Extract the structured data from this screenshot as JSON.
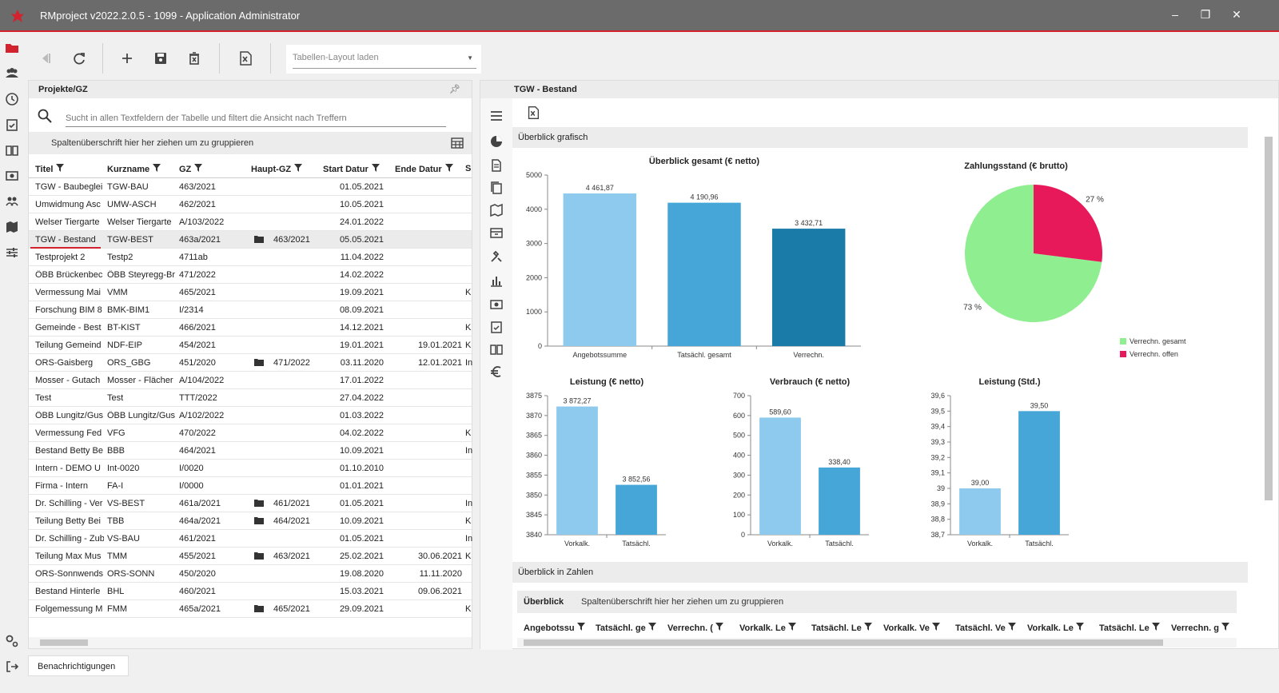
{
  "window": {
    "title": "RMproject v2022.2.0.5 - 1099 - Application Administrator",
    "minimize": "–",
    "restore": "❐",
    "close": "✕"
  },
  "toolbar": {
    "layout_select_placeholder": "Tabellen-Layout laden",
    "icons": [
      "back-icon",
      "refresh-icon",
      "add-icon",
      "save-icon",
      "delete-icon",
      "excel-export-icon"
    ]
  },
  "left_panel": {
    "title": "Projekte/GZ",
    "search_placeholder": "Sucht in allen Textfeldern der Tabelle und filtert die Ansicht nach Treffern",
    "group_hint": "Spaltenüberschrift hier her ziehen um zu gruppieren",
    "columns": [
      "Titel",
      "Kurzname",
      "GZ",
      "Haupt-GZ",
      "Start Datur",
      "Ende Datur",
      "S"
    ],
    "rows": [
      {
        "titel": "TGW - Baubeglei",
        "kurzname": "TGW-BAU",
        "gz": "463/2021",
        "haupt": "",
        "start": "01.05.2021",
        "ende": "",
        "s": "",
        "folder": false
      },
      {
        "titel": "Umwidmung Asc",
        "kurzname": "UMW-ASCH",
        "gz": "462/2021",
        "haupt": "",
        "start": "10.05.2021",
        "ende": "",
        "s": "",
        "folder": false
      },
      {
        "titel": "Welser Tiergarte",
        "kurzname": "Welser Tiergarte",
        "gz": "A/103/2022",
        "haupt": "",
        "start": "24.01.2022",
        "ende": "",
        "s": "",
        "folder": false
      },
      {
        "titel": "TGW - Bestand",
        "kurzname": "TGW-BEST",
        "gz": "463a/2021",
        "haupt": "463/2021",
        "start": "05.05.2021",
        "ende": "",
        "s": "",
        "folder": true
      },
      {
        "titel": "Testprojekt 2",
        "kurzname": "Testp2",
        "gz": "4711ab",
        "haupt": "",
        "start": "11.04.2022",
        "ende": "",
        "s": "",
        "folder": false
      },
      {
        "titel": "ÖBB Brückenbec",
        "kurzname": "ÖBB Steyregg-Br",
        "gz": "471/2022",
        "haupt": "",
        "start": "14.02.2022",
        "ende": "",
        "s": "",
        "folder": false
      },
      {
        "titel": "Vermessung Mai",
        "kurzname": "VMM",
        "gz": "465/2021",
        "haupt": "",
        "start": "19.09.2021",
        "ende": "",
        "s": "K",
        "folder": false
      },
      {
        "titel": "Forschung BIM 8",
        "kurzname": "BMK-BIM1",
        "gz": "I/2314",
        "haupt": "",
        "start": "08.09.2021",
        "ende": "",
        "s": "",
        "folder": false
      },
      {
        "titel": "Gemeinde - Best",
        "kurzname": "BT-KIST",
        "gz": "466/2021",
        "haupt": "",
        "start": "14.12.2021",
        "ende": "",
        "s": "K",
        "folder": false
      },
      {
        "titel": "Teilung Gemeind",
        "kurzname": "NDF-EIP",
        "gz": "454/2021",
        "haupt": "",
        "start": "19.01.2021",
        "ende": "19.01.2021",
        "s": "K",
        "folder": false
      },
      {
        "titel": "ORS-Gaisberg",
        "kurzname": "ORS_GBG",
        "gz": "451/2020",
        "haupt": "471/2022",
        "start": "03.11.2020",
        "ende": "12.01.2021",
        "s": "In",
        "folder": true
      },
      {
        "titel": "Mosser - Gutach",
        "kurzname": "Mosser - Flächer",
        "gz": "A/104/2022",
        "haupt": "",
        "start": "17.01.2022",
        "ende": "",
        "s": "",
        "folder": false
      },
      {
        "titel": "Test",
        "kurzname": "Test",
        "gz": "TTT/2022",
        "haupt": "",
        "start": "27.04.2022",
        "ende": "",
        "s": "",
        "folder": false
      },
      {
        "titel": "ÖBB Lungitz/Gus",
        "kurzname": "ÖBB Lungitz/Gus",
        "gz": "A/102/2022",
        "haupt": "",
        "start": "01.03.2022",
        "ende": "",
        "s": "",
        "folder": false
      },
      {
        "titel": "Vermessung Fed",
        "kurzname": "VFG",
        "gz": "470/2022",
        "haupt": "",
        "start": "04.02.2022",
        "ende": "",
        "s": "K",
        "folder": false
      },
      {
        "titel": "Bestand Betty Be",
        "kurzname": "BBB",
        "gz": "464/2021",
        "haupt": "",
        "start": "10.09.2021",
        "ende": "",
        "s": "In",
        "folder": false
      },
      {
        "titel": "Intern - DEMO U",
        "kurzname": "Int-0020",
        "gz": "I/0020",
        "haupt": "",
        "start": "01.10.2010",
        "ende": "",
        "s": "",
        "folder": false
      },
      {
        "titel": "Firma - Intern",
        "kurzname": "FA-I",
        "gz": "I/0000",
        "haupt": "",
        "start": "01.01.2021",
        "ende": "",
        "s": "",
        "folder": false
      },
      {
        "titel": "Dr. Schilling - Ver",
        "kurzname": "VS-BEST",
        "gz": "461a/2021",
        "haupt": "461/2021",
        "start": "01.05.2021",
        "ende": "",
        "s": "In",
        "folder": true
      },
      {
        "titel": "Teilung Betty Bei",
        "kurzname": "TBB",
        "gz": "464a/2021",
        "haupt": "464/2021",
        "start": "10.09.2021",
        "ende": "",
        "s": "K",
        "folder": true
      },
      {
        "titel": "Dr. Schilling - Zub",
        "kurzname": "VS-BAU",
        "gz": "461/2021",
        "haupt": "",
        "start": "01.05.2021",
        "ende": "",
        "s": "In",
        "folder": false
      },
      {
        "titel": "Teilung Max Mus",
        "kurzname": "TMM",
        "gz": "455/2021",
        "haupt": "463/2021",
        "start": "25.02.2021",
        "ende": "30.06.2021",
        "s": "K",
        "folder": true
      },
      {
        "titel": "ORS-Sonnwends",
        "kurzname": "ORS-SONN",
        "gz": "450/2020",
        "haupt": "",
        "start": "19.08.2020",
        "ende": "11.11.2020",
        "s": "",
        "folder": false
      },
      {
        "titel": "Bestand Hinterle",
        "kurzname": "BHL",
        "gz": "460/2021",
        "haupt": "",
        "start": "15.03.2021",
        "ende": "09.06.2021",
        "s": "",
        "folder": false
      },
      {
        "titel": "Folgemessung M",
        "kurzname": "FMM",
        "gz": "465a/2021",
        "haupt": "465/2021",
        "start": "29.09.2021",
        "ende": "",
        "s": "K",
        "folder": true
      }
    ],
    "selected_index": 3
  },
  "notifications_label": "Benachrichtigungen",
  "right_panel": {
    "title": "TGW - Bestand",
    "section_graph": "Überblick grafisch",
    "section_numbers": "Überblick in Zahlen",
    "numbers_group_title": "Überblick",
    "numbers_group_hint": "Spaltenüberschrift hier her ziehen um zu gruppieren",
    "numbers_columns": [
      "Angebotssu",
      "Tatsächl. ge",
      "Verrechn. (",
      "Vorkalk. Le",
      "Tatsächl. Le",
      "Vorkalk. Ve",
      "Tatsächl. Ve",
      "Vorkalk. Le",
      "Tatsächl. Le",
      "Verrechn. g"
    ]
  },
  "colors": {
    "light_blue": "#8ecaee",
    "mid_blue": "#46a6d8",
    "dark_blue": "#1b7ba8",
    "pie_green": "#8fee8f",
    "pie_red": "#e8195a",
    "accent_red": "#d2222d"
  },
  "chart_data": [
    {
      "type": "bar",
      "title": "Überblick gesamt (€ netto)",
      "categories": [
        "Angebotssumme",
        "Tatsächl. gesamt",
        "Verrechn."
      ],
      "values": [
        4461.87,
        4190.96,
        3432.71
      ],
      "labels": [
        "4 461,87",
        "4 190,96",
        "3 432,71"
      ],
      "ylim": [
        0,
        5000
      ],
      "yticks": [
        "0",
        "1000",
        "2000",
        "3000",
        "4000",
        "5000"
      ]
    },
    {
      "type": "pie",
      "title": "Zahlungsstand (€ brutto)",
      "slices": [
        {
          "name": "Verrechn. gesamt",
          "value": 73,
          "label": "73 %"
        },
        {
          "name": "Verrechn. offen",
          "value": 27,
          "label": "27 %"
        }
      ],
      "legend": "bottom-right"
    },
    {
      "type": "bar",
      "title": "Leistung (€ netto)",
      "categories": [
        "Vorkalk.",
        "Tatsächl."
      ],
      "values": [
        3872.27,
        3852.56
      ],
      "labels": [
        "3 872,27",
        "3 852,56"
      ],
      "ylim": [
        3840,
        3875
      ],
      "yticks": [
        "3840",
        "3845",
        "3850",
        "3855",
        "3860",
        "3865",
        "3870",
        "3875"
      ]
    },
    {
      "type": "bar",
      "title": "Verbrauch (€ netto)",
      "categories": [
        "Vorkalk.",
        "Tatsächl."
      ],
      "values": [
        589.6,
        338.4
      ],
      "labels": [
        "589,60",
        "338,40"
      ],
      "ylim": [
        0,
        700
      ],
      "yticks": [
        "0",
        "100",
        "200",
        "300",
        "400",
        "500",
        "600",
        "700"
      ]
    },
    {
      "type": "bar",
      "title": "Leistung (Std.)",
      "categories": [
        "Vorkalk.",
        "Tatsächl."
      ],
      "values": [
        39.0,
        39.5
      ],
      "labels": [
        "39,00",
        "39,50"
      ],
      "ylim": [
        38.7,
        39.6
      ],
      "yticks": [
        "38,7",
        "38,8",
        "38,9",
        "39",
        "39,1",
        "39,2",
        "39,3",
        "39,4",
        "39,5",
        "39,6"
      ]
    }
  ]
}
